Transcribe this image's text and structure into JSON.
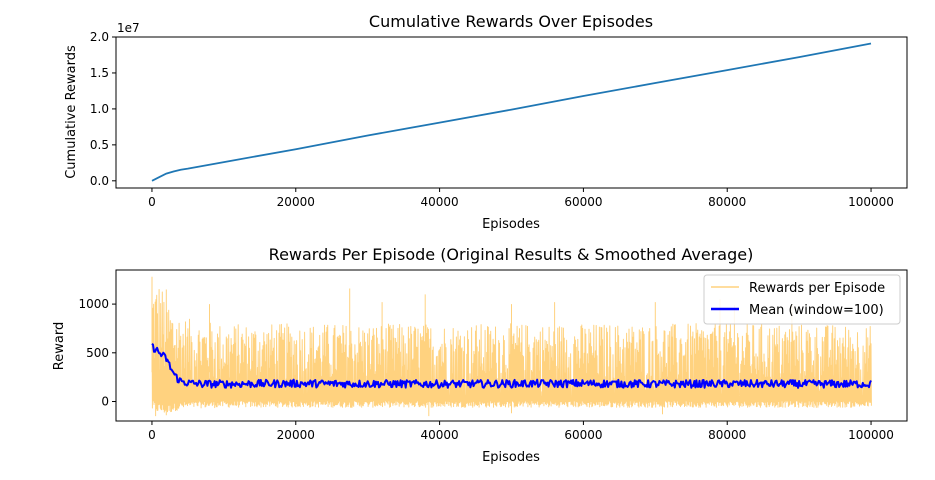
{
  "chart_data": [
    {
      "type": "line",
      "title": "Cumulative Rewards Over Episodes",
      "xlabel": "Episodes",
      "ylabel": "Cumulative Rewards",
      "y_scale_label": "1e7",
      "xlim": [
        -5000,
        105000
      ],
      "ylim": [
        -0.1,
        2.0
      ],
      "x_ticks": [
        0,
        20000,
        40000,
        60000,
        80000,
        100000
      ],
      "x_tick_labels": [
        "0",
        "20000",
        "40000",
        "60000",
        "80000",
        "100000"
      ],
      "y_ticks": [
        0.0,
        0.5,
        1.0,
        1.5,
        2.0
      ],
      "y_tick_labels": [
        "0.0",
        "0.5",
        "1.0",
        "1.5",
        "2.0"
      ],
      "grid": false,
      "series": [
        {
          "color": "#1f77b4",
          "x": [
            0,
            1000,
            2000,
            3000,
            4000,
            5000,
            10000,
            20000,
            30000,
            40000,
            50000,
            60000,
            70000,
            80000,
            90000,
            100000
          ],
          "y": [
            0.0,
            0.05,
            0.1,
            0.13,
            0.155,
            0.17,
            0.26,
            0.44,
            0.63,
            0.81,
            0.99,
            1.18,
            1.36,
            1.54,
            1.72,
            1.91
          ]
        }
      ]
    },
    {
      "type": "line",
      "title": "Rewards Per Episode (Original Results & Smoothed Average)",
      "xlabel": "Episodes",
      "ylabel": "Reward",
      "xlim": [
        -5000,
        105000
      ],
      "ylim": [
        -200,
        1350
      ],
      "x_ticks": [
        0,
        20000,
        40000,
        60000,
        80000,
        100000
      ],
      "x_tick_labels": [
        "0",
        "20000",
        "40000",
        "60000",
        "80000",
        "100000"
      ],
      "y_ticks": [
        0,
        500,
        1000
      ],
      "y_tick_labels": [
        "0",
        "500",
        "1000"
      ],
      "grid": false,
      "legend_position": "top-right",
      "series": [
        {
          "name": "Rewards per Episode",
          "color": "#ffd27f",
          "x": [
            0,
            1000,
            2000,
            3000,
            4000,
            5000,
            10000,
            20000,
            30000,
            40000,
            50000,
            60000,
            70000,
            80000,
            90000,
            100000
          ],
          "upper": [
            1260,
            1250,
            1100,
            980,
            900,
            850,
            800,
            800,
            800,
            800,
            800,
            800,
            800,
            800,
            800,
            780
          ],
          "lower": [
            -100,
            -120,
            -130,
            -100,
            -80,
            -70,
            -60,
            -60,
            -60,
            -60,
            -60,
            -60,
            -60,
            -60,
            -60,
            -60
          ],
          "peaks": [
            [
              0,
              1280
            ],
            [
              2000,
              1150
            ],
            [
              8000,
              1000
            ],
            [
              27500,
              1160
            ],
            [
              32000,
              1020
            ],
            [
              38000,
              1100
            ],
            [
              50000,
              1000
            ],
            [
              56000,
              1020
            ],
            [
              70000,
              1020
            ],
            [
              79000,
              1050
            ],
            [
              81000,
              990
            ],
            [
              89000,
              1000
            ]
          ],
          "troughs": [
            [
              500,
              -150
            ],
            [
              2000,
              -140
            ],
            [
              38500,
              -150
            ],
            [
              50000,
              -120
            ],
            [
              71000,
              -130
            ]
          ]
        },
        {
          "name": "Mean (window=100)",
          "color": "#0000ff",
          "x": [
            0,
            500,
            1000,
            1500,
            2000,
            2500,
            3000,
            3500,
            4000,
            5000,
            7000,
            10000,
            20000,
            30000,
            40000,
            50000,
            60000,
            70000,
            80000,
            90000,
            100000
          ],
          "y": [
            560,
            540,
            500,
            470,
            440,
            360,
            290,
            240,
            210,
            190,
            180,
            180,
            185,
            182,
            180,
            183,
            185,
            180,
            182,
            180,
            180
          ]
        }
      ]
    }
  ]
}
